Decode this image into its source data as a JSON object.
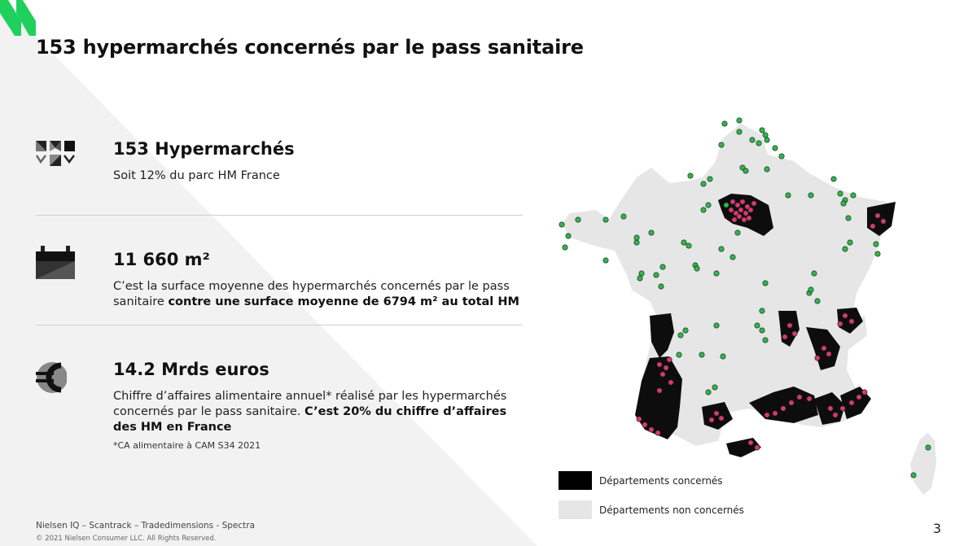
{
  "title": "153 hypermarchés concernés par le pass sanitaire",
  "stats": [
    {
      "icon": "hypermarket-logo-icon",
      "heading": "153 Hypermarchés",
      "desc": "Soit 12% du parc HM France"
    },
    {
      "icon": "surface-area-icon",
      "heading": "11 660 m²",
      "desc_plain": "C’est la surface moyenne des hypermarchés concernés par le pass sanitaire ",
      "desc_bold": "contre une surface moyenne de 6794 m² au total HM"
    },
    {
      "icon": "euro-icon",
      "heading": "14.2 Mrds euros",
      "desc_plain": "Chiffre d’affaires alimentaire annuel* réalisé par les hypermarchés concernés par le pass sanitaire. ",
      "desc_bold": "C’est 20% du chiffre d’affaires des HM en France",
      "footnote": "*CA alimentaire à CAM S34 2021"
    }
  ],
  "legend": [
    {
      "label": "Départements concernés",
      "color": "#000000"
    },
    {
      "label": "Départements non concernés",
      "color": "#e6e6e6"
    }
  ],
  "map": {
    "colors": {
      "land": "#e6e6e6",
      "concerned": "#0d0d0d",
      "store_concerned": "#d63a6e",
      "store_other": "#2db84a"
    }
  },
  "footer": {
    "source": "Nielsen IQ – Scantrack – Tradedimensions - Spectra",
    "copyright": "© 2021 Nielsen Consumer LLC. All Rights Reserved."
  },
  "page_number": "3",
  "brand_color": "#1fd15c"
}
